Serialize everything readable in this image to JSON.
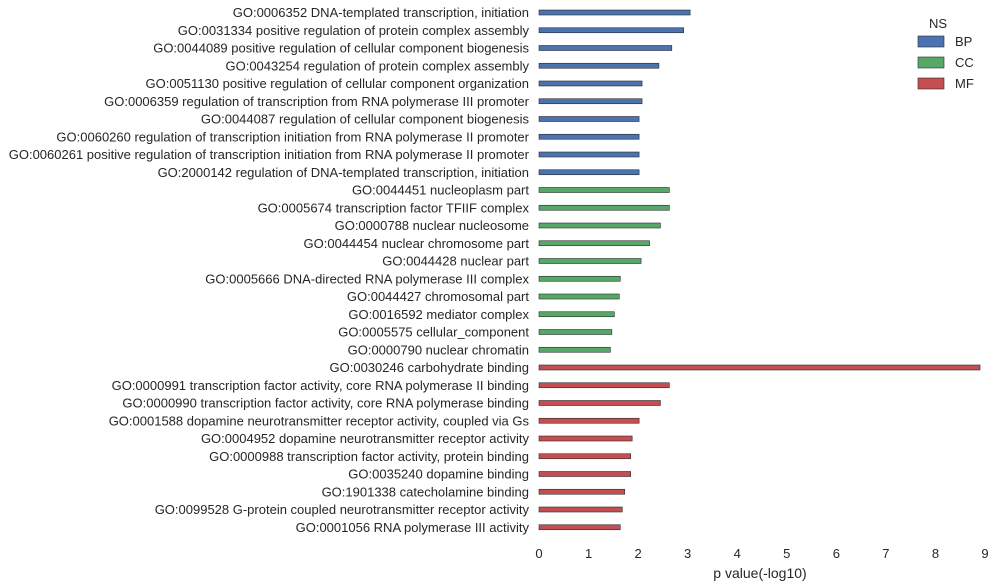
{
  "chart_data": {
    "type": "bar",
    "orientation": "horizontal",
    "xlabel": "p value(-log10)",
    "ylabel": "",
    "xlim": [
      0,
      9
    ],
    "xticks": [
      0,
      1,
      2,
      3,
      4,
      5,
      6,
      7,
      8,
      9
    ],
    "grid": false,
    "legend": {
      "title": "NS",
      "position": "top-right",
      "entries": [
        {
          "name": "BP",
          "color": "#4c72b0"
        },
        {
          "name": "CC",
          "color": "#55a868"
        },
        {
          "name": "MF",
          "color": "#c44e52"
        }
      ]
    },
    "bars": [
      {
        "label": "GO:0006352 DNA-templated transcription, initiation",
        "value": 3.05,
        "ns": "BP"
      },
      {
        "label": "GO:0031334 positive regulation of protein complex assembly",
        "value": 2.92,
        "ns": "BP"
      },
      {
        "label": "GO:0044089 positive regulation of cellular component biogenesis",
        "value": 2.68,
        "ns": "BP"
      },
      {
        "label": "GO:0043254 regulation of protein complex assembly",
        "value": 2.42,
        "ns": "BP"
      },
      {
        "label": "GO:0051130 positive regulation of cellular component organization",
        "value": 2.08,
        "ns": "BP"
      },
      {
        "label": "GO:0006359 regulation of transcription from RNA polymerase III promoter",
        "value": 2.08,
        "ns": "BP"
      },
      {
        "label": "GO:0044087 regulation of cellular component biogenesis",
        "value": 2.02,
        "ns": "BP"
      },
      {
        "label": "GO:0060260 regulation of transcription initiation from RNA polymerase II promoter",
        "value": 2.02,
        "ns": "BP"
      },
      {
        "label": "GO:0060261 positive regulation of transcription initiation from RNA polymerase II promoter",
        "value": 2.02,
        "ns": "BP"
      },
      {
        "label": "GO:2000142 regulation of DNA-templated transcription, initiation",
        "value": 2.02,
        "ns": "BP"
      },
      {
        "label": "GO:0044451 nucleoplasm part",
        "value": 2.63,
        "ns": "CC"
      },
      {
        "label": "GO:0005674 transcription factor TFIIF complex",
        "value": 2.63,
        "ns": "CC"
      },
      {
        "label": "GO:0000788 nuclear nucleosome",
        "value": 2.45,
        "ns": "CC"
      },
      {
        "label": "GO:0044454 nuclear chromosome part",
        "value": 2.23,
        "ns": "CC"
      },
      {
        "label": "GO:0044428 nuclear part",
        "value": 2.06,
        "ns": "CC"
      },
      {
        "label": "GO:0005666 DNA-directed RNA polymerase III complex",
        "value": 1.64,
        "ns": "CC"
      },
      {
        "label": "GO:0044427 chromosomal part",
        "value": 1.62,
        "ns": "CC"
      },
      {
        "label": "GO:0016592 mediator complex",
        "value": 1.52,
        "ns": "CC"
      },
      {
        "label": "GO:0005575 cellular_component",
        "value": 1.47,
        "ns": "CC"
      },
      {
        "label": "GO:0000790 nuclear chromatin",
        "value": 1.44,
        "ns": "CC"
      },
      {
        "label": "GO:0030246 carbohydrate binding",
        "value": 8.9,
        "ns": "MF"
      },
      {
        "label": "GO:0000991 transcription factor activity, core RNA polymerase II binding",
        "value": 2.63,
        "ns": "MF"
      },
      {
        "label": "GO:0000990 transcription factor activity, core RNA polymerase binding",
        "value": 2.45,
        "ns": "MF"
      },
      {
        "label": "GO:0001588 dopamine neurotransmitter receptor activity, coupled via Gs",
        "value": 2.02,
        "ns": "MF"
      },
      {
        "label": "GO:0004952 dopamine neurotransmitter receptor activity",
        "value": 1.88,
        "ns": "MF"
      },
      {
        "label": "GO:0000988 transcription factor activity, protein binding",
        "value": 1.85,
        "ns": "MF"
      },
      {
        "label": "GO:0035240 dopamine binding",
        "value": 1.85,
        "ns": "MF"
      },
      {
        "label": "GO:1901338 catecholamine binding",
        "value": 1.73,
        "ns": "MF"
      },
      {
        "label": "GO:0099528 G-protein coupled neurotransmitter receptor activity",
        "value": 1.68,
        "ns": "MF"
      },
      {
        "label": "GO:0001056 RNA polymerase III activity",
        "value": 1.64,
        "ns": "MF"
      }
    ]
  }
}
